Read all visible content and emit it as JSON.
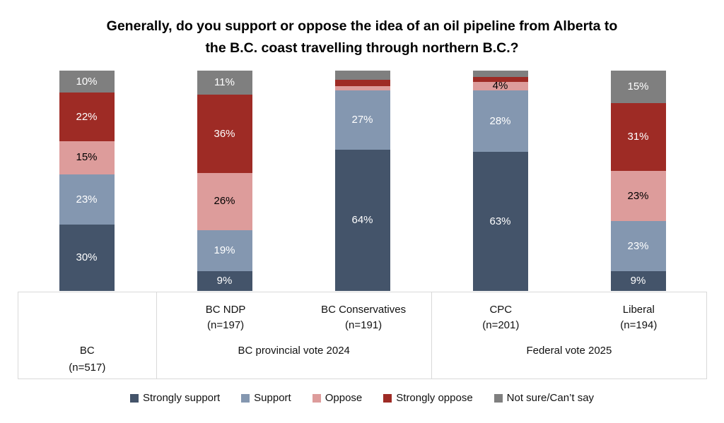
{
  "title": {
    "line1": "Generally, do you support or oppose the idea of an oil pipeline from Alberta to",
    "line2": "the B.C. coast travelling through northern B.C.?"
  },
  "legend": {
    "items": [
      {
        "label": "Strongly support",
        "color": "#44546A"
      },
      {
        "label": "Support",
        "color": "#8497B0"
      },
      {
        "label": "Oppose",
        "color": "#DD9C9B"
      },
      {
        "label": "Strongly oppose",
        "color": "#9E2B25"
      },
      {
        "label": "Not sure/Can’t say",
        "color": "#7F7F7F"
      }
    ]
  },
  "axis": {
    "groups": [
      {
        "label": "BC",
        "sublabel": "(n=517)",
        "span": 1,
        "items": []
      },
      {
        "label": "BC provincial vote 2024",
        "sublabel": "",
        "span": 2,
        "items": [
          {
            "name": "BC NDP",
            "n": "(n=197)"
          },
          {
            "name": "BC Conservatives",
            "n": "(n=191)"
          }
        ]
      },
      {
        "label": "Federal vote 2025",
        "sublabel": "",
        "span": 2,
        "items": [
          {
            "name": "CPC",
            "n": "(n=201)"
          },
          {
            "name": "Liberal",
            "n": "(n=194)"
          }
        ]
      }
    ]
  },
  "chart_data": {
    "type": "bar",
    "subtype": "100-percent-stacked-column",
    "title": "Generally, do you support or oppose the idea of an oil pipeline from Alberta to the B.C. coast travelling through northern B.C.?",
    "categories": [
      "BC (n=517)",
      "BC NDP (n=197)",
      "BC Conservatives (n=191)",
      "CPC (n=201)",
      "Liberal (n=194)"
    ],
    "category_groups": [
      "BC",
      "BC provincial vote 2024",
      "BC provincial vote 2024",
      "Federal vote 2025",
      "Federal vote 2025"
    ],
    "series": [
      {
        "name": "Strongly support",
        "color": "#44546A",
        "label_color": "#FFFFFF",
        "values": [
          30,
          9,
          64,
          63,
          9
        ],
        "labels_shown": [
          true,
          true,
          true,
          true,
          true
        ]
      },
      {
        "name": "Support",
        "color": "#8497B0",
        "label_color": "#FFFFFF",
        "values": [
          23,
          19,
          27,
          28,
          23
        ],
        "labels_shown": [
          true,
          true,
          true,
          true,
          true
        ]
      },
      {
        "name": "Oppose",
        "color": "#DD9C9B",
        "label_color": "#000000",
        "values": [
          15,
          26,
          2,
          4,
          23
        ],
        "labels_shown": [
          true,
          true,
          false,
          true,
          true
        ]
      },
      {
        "name": "Strongly oppose",
        "color": "#9E2B25",
        "label_color": "#FFFFFF",
        "values": [
          22,
          36,
          3,
          2,
          31
        ],
        "labels_shown": [
          true,
          true,
          false,
          false,
          true
        ]
      },
      {
        "name": "Not sure/Can’t say",
        "color": "#7F7F7F",
        "label_color": "#FFFFFF",
        "values": [
          10,
          11,
          4,
          3,
          15
        ],
        "labels_shown": [
          true,
          true,
          false,
          false,
          true
        ]
      }
    ],
    "value_format": "{v}%",
    "ylim": [
      0,
      100
    ],
    "grid": false,
    "legend_position": "bottom"
  }
}
